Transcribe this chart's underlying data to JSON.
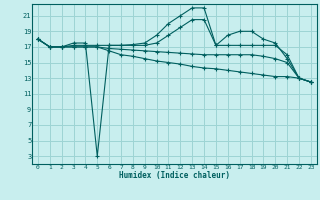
{
  "xlabel": "Humidex (Indice chaleur)",
  "bg_color": "#c8eeee",
  "grid_color": "#9dd4d4",
  "line_color": "#005f5f",
  "xlim": [
    -0.5,
    23.5
  ],
  "ylim": [
    2,
    22.5
  ],
  "yticks": [
    3,
    5,
    7,
    9,
    11,
    13,
    15,
    17,
    19,
    21
  ],
  "xticks": [
    0,
    1,
    2,
    3,
    4,
    5,
    6,
    7,
    8,
    9,
    10,
    11,
    12,
    13,
    14,
    15,
    16,
    17,
    18,
    19,
    20,
    21,
    22,
    23
  ],
  "lines": [
    {
      "x": [
        0,
        1,
        2,
        3,
        4,
        5,
        6,
        7,
        8,
        9,
        10,
        11,
        12,
        13,
        14,
        15,
        16,
        17,
        18,
        19,
        20,
        21,
        22,
        23
      ],
      "y": [
        18,
        17,
        17,
        17.5,
        17.5,
        3,
        17.2,
        17.2,
        17.3,
        17.5,
        18.5,
        20,
        21,
        22,
        22,
        17.2,
        18.5,
        19,
        19,
        18,
        17.5,
        15.5,
        13,
        12.5
      ]
    },
    {
      "x": [
        0,
        1,
        2,
        3,
        4,
        5,
        6,
        7,
        8,
        9,
        10,
        11,
        12,
        13,
        14,
        15,
        16,
        17,
        18,
        19,
        20,
        21,
        22,
        23
      ],
      "y": [
        18,
        17,
        17,
        17.2,
        17.2,
        17.2,
        17.2,
        17.2,
        17.2,
        17.2,
        17.5,
        18.5,
        19.5,
        20.5,
        20.5,
        17.2,
        17.2,
        17.2,
        17.2,
        17.2,
        17.2,
        16,
        13,
        12.5
      ]
    },
    {
      "x": [
        0,
        1,
        2,
        3,
        4,
        5,
        6,
        7,
        8,
        9,
        10,
        11,
        12,
        13,
        14,
        15,
        16,
        17,
        18,
        19,
        20,
        21,
        22,
        23
      ],
      "y": [
        18,
        17,
        17,
        17,
        17,
        17,
        16.8,
        16.7,
        16.6,
        16.5,
        16.4,
        16.3,
        16.2,
        16.1,
        16,
        16,
        16,
        16,
        16,
        15.8,
        15.5,
        15,
        13,
        12.5
      ]
    },
    {
      "x": [
        0,
        1,
        2,
        3,
        4,
        5,
        6,
        7,
        8,
        9,
        10,
        11,
        12,
        13,
        14,
        15,
        16,
        17,
        18,
        19,
        20,
        21,
        22,
        23
      ],
      "y": [
        18,
        17,
        17,
        17,
        17,
        17,
        16.5,
        16,
        15.8,
        15.5,
        15.2,
        15.0,
        14.8,
        14.5,
        14.3,
        14.2,
        14.0,
        13.8,
        13.6,
        13.4,
        13.2,
        13.2,
        13,
        12.5
      ]
    }
  ]
}
